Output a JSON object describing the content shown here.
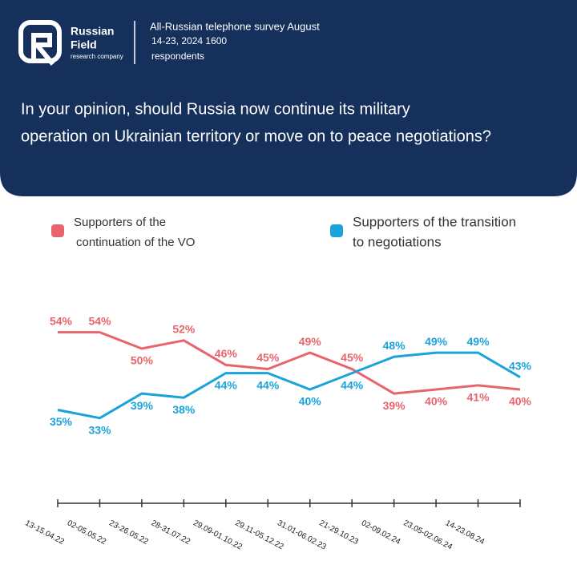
{
  "header": {
    "brand": "Russian",
    "brand2": "Field",
    "tagline": "research company",
    "survey": [
      "All-Russian telephone survey August",
      "14-23, 2024 1600",
      "respondents"
    ]
  },
  "chart_data": {
    "type": "line",
    "title": [
      "In your opinion, should Russia now continue its military",
      "operation on Ukrainian territory or move on to peace negotiations?"
    ],
    "categories": [
      "13-15.04.22",
      "02-05.05.22",
      "23-26.05.22",
      "28-31.07.22",
      "29.09-01.10.22",
      "29.11-05.12.22",
      "31.01-06.02.23",
      "21-29.10.23",
      "02-09.02.24",
      "23.05-02.06.24",
      "14-23.08.24",
      null
    ],
    "series": [
      {
        "name": [
          "Supporters of the",
          "continuation of the VO"
        ],
        "color": "#e8646b",
        "values": [
          54,
          54,
          50,
          52,
          46,
          45,
          49,
          45,
          39,
          40,
          41,
          40
        ],
        "value_labels": [
          "54%",
          "54%",
          "50%",
          "52%",
          "46%",
          "45%",
          "49%",
          "45%",
          "39%",
          "40%",
          "41%",
          "40%"
        ]
      },
      {
        "name": [
          "Supporters of the transition",
          "to negotiations"
        ],
        "color": "#1aa3db",
        "values": [
          35,
          33,
          39,
          38,
          44,
          44,
          40,
          44,
          48,
          49,
          49,
          43
        ],
        "value_labels": [
          "35%",
          "33%",
          "39%",
          "38%",
          "44%",
          "44%",
          "40%",
          "44%",
          "48%",
          "49%",
          "49%",
          "43%"
        ]
      }
    ],
    "ylim": [
      30,
      60
    ]
  }
}
